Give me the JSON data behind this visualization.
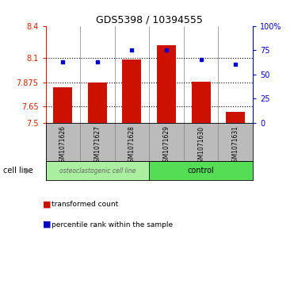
{
  "title": "GDS5398 / 10394555",
  "samples": [
    "GSM1071626",
    "GSM1071627",
    "GSM1071628",
    "GSM1071629",
    "GSM1071630",
    "GSM1071631"
  ],
  "bar_values": [
    7.83,
    7.875,
    8.09,
    8.22,
    7.88,
    7.6
  ],
  "percentile_values": [
    63,
    63,
    75,
    75,
    65,
    60
  ],
  "ylim_left": [
    7.5,
    8.4
  ],
  "ylim_right": [
    0,
    100
  ],
  "yticks_left": [
    7.5,
    7.65,
    7.875,
    8.1,
    8.4
  ],
  "ytick_labels_left": [
    "7.5",
    "7.65",
    "7.875",
    "8.1",
    "8.4"
  ],
  "yticks_right": [
    0,
    25,
    50,
    75,
    100
  ],
  "ytick_labels_right": [
    "0",
    "25",
    "50",
    "75",
    "100%"
  ],
  "dotted_lines": [
    7.65,
    7.875,
    8.1
  ],
  "bar_color": "#CC1100",
  "dot_color": "#0000CC",
  "bar_bottom": 7.5,
  "groups": [
    {
      "label": "osteoclastogenic cell line",
      "span": [
        0,
        3
      ],
      "color": "#AAEEA0"
    },
    {
      "label": "control",
      "span": [
        3,
        6
      ],
      "color": "#55DD55"
    }
  ],
  "cell_line_label": "cell line",
  "legend_bar_label": "transformed count",
  "legend_dot_label": "percentile rank within the sample",
  "left_axis_color": "#CC2200",
  "right_axis_color": "#0000CC",
  "bg_color": "#FFFFFF",
  "plot_bg_color": "#FFFFFF",
  "label_area_color": "#BBBBBB"
}
